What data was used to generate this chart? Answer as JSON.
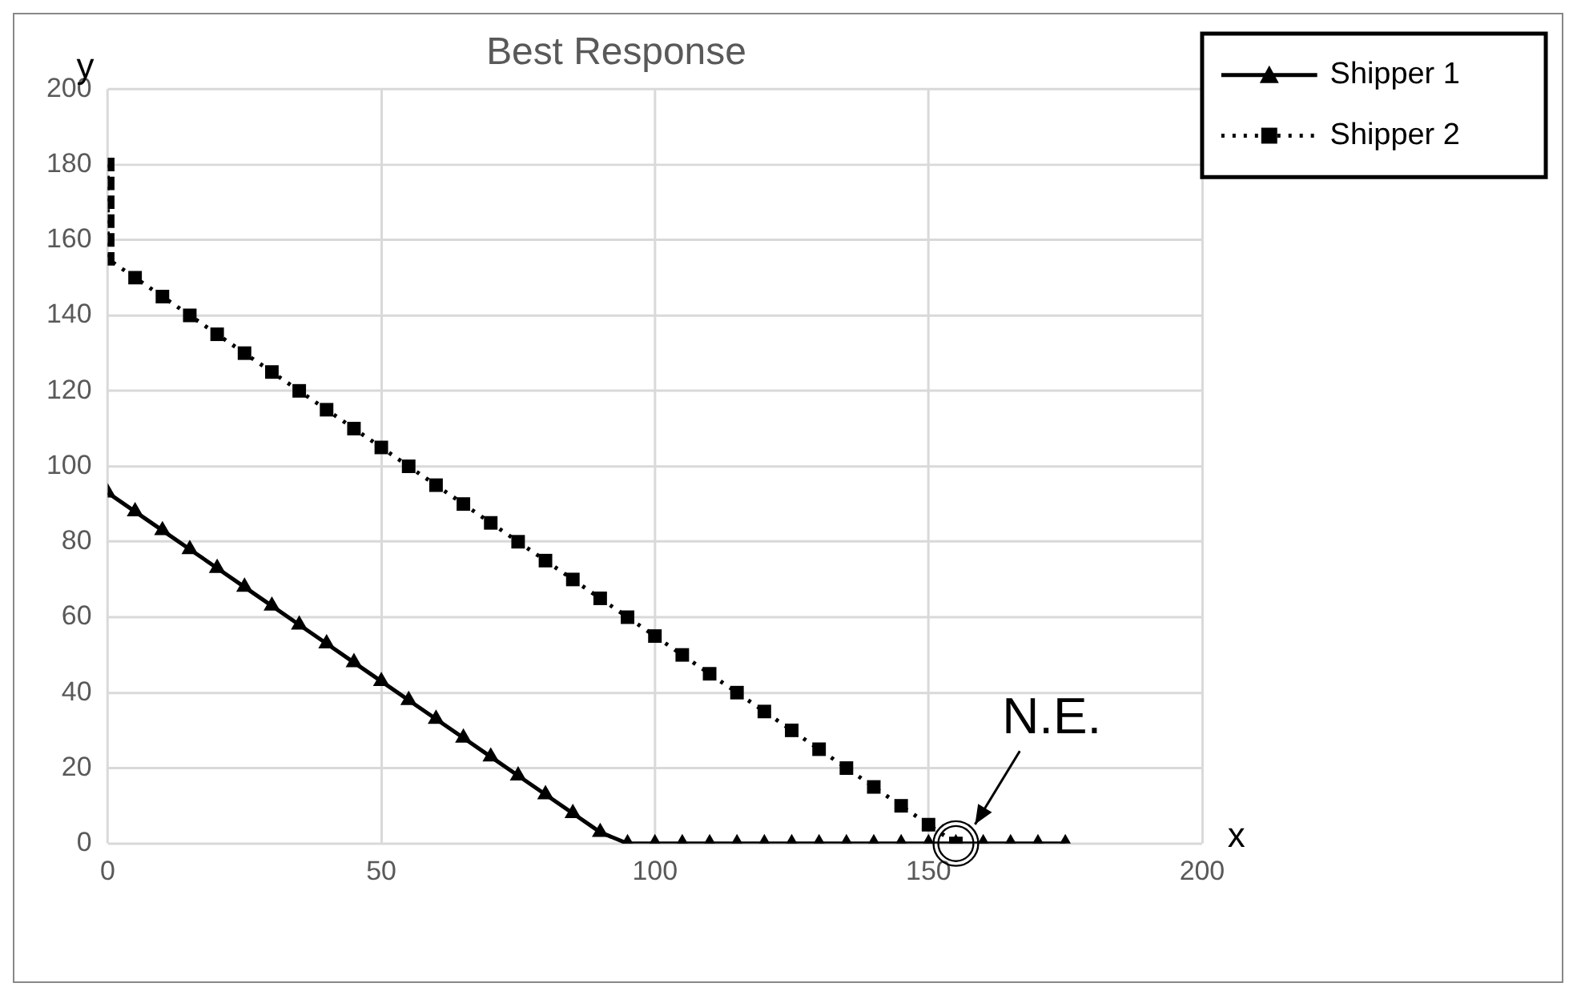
{
  "chart_data": {
    "type": "line",
    "title": "Best Response",
    "xlabel": "x",
    "ylabel": "y",
    "xlim": [
      0,
      200
    ],
    "xticks": [
      0,
      50,
      100,
      150,
      200
    ],
    "ylim": [
      0,
      200
    ],
    "yticks": [
      0,
      20,
      40,
      60,
      80,
      100,
      120,
      140,
      160,
      180,
      200
    ],
    "grid": true,
    "legend": "top right",
    "series": [
      {
        "name": "Shipper 1",
        "color": "#000000",
        "marker": "triangle",
        "line_style": "solid",
        "x": [
          0,
          5,
          10,
          15,
          20,
          25,
          30,
          35,
          40,
          45,
          50,
          55,
          60,
          65,
          70,
          75,
          80,
          85,
          90,
          95,
          100,
          105,
          110,
          115,
          120,
          125,
          130,
          135,
          140,
          145,
          150,
          155,
          160,
          165,
          170,
          175
        ],
        "values": [
          93,
          88,
          83,
          78,
          73,
          68,
          63,
          58,
          53,
          48,
          43,
          38,
          33,
          28,
          23,
          18,
          13,
          8,
          3,
          0,
          0,
          0,
          0,
          0,
          0,
          0,
          0,
          0,
          0,
          0,
          0,
          0,
          0,
          0,
          0,
          0
        ]
      },
      {
        "name": "Shipper 2",
        "color": "#000000",
        "marker": "square",
        "line_style": "dotted",
        "x": [
          0,
          0,
          0,
          0,
          0,
          0,
          5,
          10,
          15,
          20,
          25,
          30,
          35,
          40,
          45,
          50,
          55,
          60,
          65,
          70,
          75,
          80,
          85,
          90,
          95,
          100,
          105,
          110,
          115,
          120,
          125,
          130,
          135,
          140,
          145,
          150,
          155
        ],
        "values": [
          180,
          175,
          170,
          165,
          160,
          155,
          150,
          145,
          140,
          135,
          130,
          125,
          120,
          115,
          110,
          105,
          100,
          95,
          90,
          85,
          80,
          75,
          70,
          65,
          60,
          55,
          50,
          45,
          40,
          35,
          30,
          25,
          20,
          15,
          10,
          5,
          0
        ]
      }
    ],
    "annotations": [
      {
        "text": "N.E.",
        "x": 155,
        "y": 0
      }
    ]
  }
}
